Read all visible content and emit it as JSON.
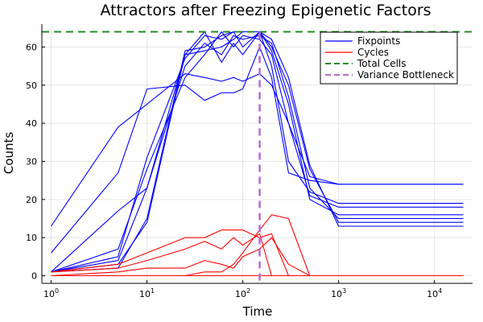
{
  "chart_data": {
    "type": "line",
    "title": "Attractors after Freezing Epigenetic Factors",
    "xlabel": "Time",
    "ylabel": "Counts",
    "xscale": "log10",
    "xlim": [
      0.8,
      25000
    ],
    "ylim": [
      -2,
      66
    ],
    "grid": true,
    "legend_position": "top-right",
    "x_ticks": [
      {
        "value": 1,
        "base": "10",
        "exp": "0"
      },
      {
        "value": 10,
        "base": "10",
        "exp": "1"
      },
      {
        "value": 100,
        "base": "10",
        "exp": "2"
      },
      {
        "value": 1000,
        "base": "10",
        "exp": "3"
      },
      {
        "value": 10000,
        "base": "10",
        "exp": "4"
      }
    ],
    "y_ticks": [
      0,
      10,
      20,
      30,
      40,
      50,
      60
    ],
    "x": [
      1,
      5,
      10,
      25,
      40,
      60,
      80,
      100,
      150,
      200,
      300,
      500,
      1000,
      20000
    ],
    "legend": [
      {
        "label": "Fixpoints",
        "color": "#0000ff",
        "dash": "solid"
      },
      {
        "label": "Cycles",
        "color": "#ff0000",
        "dash": "solid"
      },
      {
        "label": "Total Cells",
        "color": "#228b22",
        "dash": "dash"
      },
      {
        "label": "Variance Bottleneck",
        "color": "#ba68d1",
        "dash": "dash"
      }
    ],
    "series": [
      {
        "group": "Fixpoints",
        "color": "#0000ff",
        "values": [
          13,
          39,
          45,
          53,
          52,
          51,
          52,
          51,
          53,
          50,
          40,
          26,
          24,
          24
        ]
      },
      {
        "group": "Fixpoints",
        "color": "#0000ff",
        "values": [
          6,
          27,
          49,
          50,
          46,
          48,
          48,
          49,
          60,
          52,
          27,
          25,
          24,
          24
        ]
      },
      {
        "group": "Fixpoints",
        "color": "#0000ff",
        "values": [
          1,
          17,
          23,
          58,
          59,
          60,
          62,
          64,
          64,
          55,
          30,
          22,
          19,
          19
        ]
      },
      {
        "group": "Fixpoints",
        "color": "#0000ff",
        "values": [
          1,
          7,
          28,
          52,
          58,
          64,
          60,
          63,
          62,
          58,
          40,
          21,
          18,
          18
        ]
      },
      {
        "group": "Fixpoints",
        "color": "#0000ff",
        "values": [
          1,
          5,
          31,
          57,
          63,
          62,
          64,
          60,
          64,
          59,
          45,
          20,
          16,
          16
        ]
      },
      {
        "group": "Fixpoints",
        "color": "#0000ff",
        "values": [
          1,
          4,
          23,
          55,
          61,
          58,
          63,
          62,
          63,
          61,
          47,
          23,
          15,
          15
        ]
      },
      {
        "group": "Fixpoints",
        "color": "#0000ff",
        "values": [
          1,
          3,
          14,
          58,
          64,
          56,
          61,
          58,
          64,
          60,
          50,
          28,
          14,
          14
        ]
      },
      {
        "group": "Fixpoints",
        "color": "#0000ff",
        "values": [
          1,
          2,
          15,
          59,
          60,
          63,
          64,
          64,
          64,
          62,
          52,
          29,
          13,
          13
        ]
      },
      {
        "group": "Cycles",
        "color": "#ff0000",
        "values": [
          1,
          3,
          6,
          10,
          10,
          12,
          12,
          12,
          10,
          11,
          0,
          0,
          0,
          0
        ]
      },
      {
        "group": "Cycles",
        "color": "#ff0000",
        "values": [
          1,
          2,
          4,
          7,
          9,
          7,
          10,
          8,
          11,
          0,
          0,
          0,
          0,
          0
        ]
      },
      {
        "group": "Cycles",
        "color": "#ff0000",
        "values": [
          0,
          1,
          2,
          2,
          4,
          3,
          2,
          5,
          7,
          10,
          3,
          0,
          0,
          0
        ]
      },
      {
        "group": "Cycles",
        "color": "#ff0000",
        "values": [
          0,
          0,
          0,
          0,
          1,
          1,
          3,
          6,
          12,
          16,
          15,
          0,
          0,
          0
        ]
      },
      {
        "group": "Cycles",
        "color": "#ff0000",
        "values": [
          0,
          0,
          0,
          0,
          0,
          0,
          0,
          0,
          0,
          0,
          0,
          0,
          0,
          0
        ]
      }
    ],
    "reference_lines": [
      {
        "group": "Total Cells",
        "orientation": "horizontal",
        "value": 64,
        "color": "#228b22"
      },
      {
        "group": "Variance Bottleneck",
        "orientation": "vertical",
        "value": 150,
        "color": "#ba68d1"
      }
    ]
  }
}
